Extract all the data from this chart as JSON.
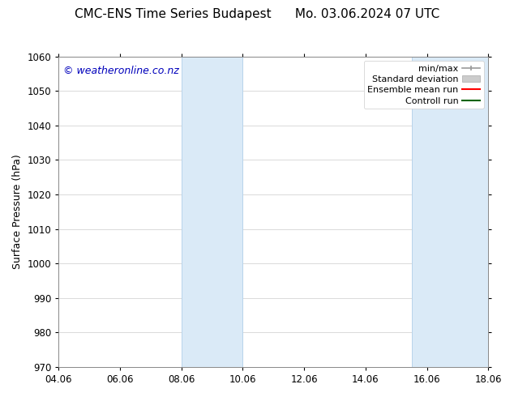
{
  "title_left": "CMC-ENS Time Series Budapest",
  "title_right": "Mo. 03.06.2024 07 UTC",
  "ylabel": "Surface Pressure (hPa)",
  "ylim": [
    970,
    1060
  ],
  "yticks": [
    970,
    980,
    990,
    1000,
    1010,
    1020,
    1030,
    1040,
    1050,
    1060
  ],
  "xtick_labels": [
    "04.06",
    "06.06",
    "08.06",
    "10.06",
    "12.06",
    "14.06",
    "16.06",
    "18.06"
  ],
  "xtick_positions": [
    0,
    2,
    4,
    6,
    8,
    10,
    12,
    14
  ],
  "xlim": [
    0,
    14
  ],
  "shaded_bands": [
    {
      "x_start": 4,
      "x_end": 6
    },
    {
      "x_start": 11.5,
      "x_end": 14.0
    }
  ],
  "shaded_color": "#daeaf7",
  "shaded_edge_color": "#b8d4eb",
  "watermark_text": "© weatheronline.co.nz",
  "watermark_color": "#0000bb",
  "background_color": "#ffffff",
  "grid_color": "#cccccc",
  "spine_color": "#888888",
  "title_fontsize": 11,
  "axis_fontsize": 9,
  "tick_fontsize": 8.5,
  "watermark_fontsize": 9,
  "legend_fontsize": 8
}
